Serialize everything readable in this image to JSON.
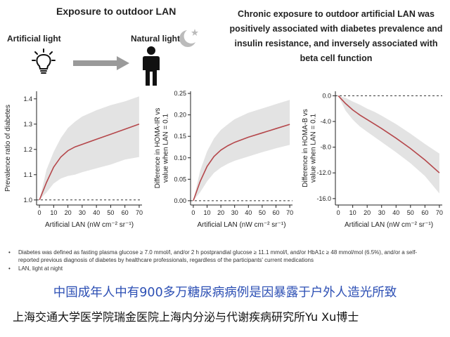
{
  "header": {
    "left_title": "Exposure to outdoor LAN",
    "artificial_label": "Artificial light",
    "natural_label": "Natural light",
    "right_title": "Chronic exposure to outdoor artificial LAN was positively associated with diabetes prevalence and insulin resistance, and inversely associated with beta cell function"
  },
  "colors": {
    "curve": "#b5474b",
    "band": "#e3e3e3",
    "arrow": "#9a9a9a",
    "blue_text": "#2c4fb4"
  },
  "icons": [
    "light-bulb-icon",
    "arrow-right-icon",
    "person-icon",
    "moon-icon",
    "star-icon"
  ],
  "notes": [
    "Diabetes was defined as fasting plasma glucose ≥ 7.0 mmol/l, and/or 2 h postprandial glucose ≥ 11.1 mmol/l, and/or HbA1c ≥ 48 mmol/mol (6.5%), and/or a self-reported previous diagnosis of diabetes by healthcare professionals, regardless of the participants' current medications",
    "LAN, light at night"
  ],
  "captions": {
    "blue": "中国成年人中有900多万糖尿病病例是因暴露于户外人造光所致",
    "black": "上海交通大学医学院瑞金医院上海内分泌与代谢疾病研究所Yu Xu博士"
  },
  "chart_data": [
    {
      "type": "line",
      "xlabel": "Artificial LAN (nW cm⁻² sr⁻¹)",
      "ylabel": "Prevalence ratio of diabetes",
      "xlim": [
        -2,
        72
      ],
      "ylim": [
        0.98,
        1.43
      ],
      "xticks": [
        0,
        10,
        20,
        30,
        40,
        50,
        60,
        70
      ],
      "yticks": [
        1.0,
        1.1,
        1.2,
        1.3,
        1.4
      ],
      "ytick_labels": [
        "1.0",
        "1.1",
        "1.2",
        "1.3",
        "1.4"
      ],
      "reference_y": 1.0,
      "x": [
        0,
        5,
        10,
        15,
        20,
        25,
        30,
        40,
        50,
        60,
        70
      ],
      "y": [
        1.0,
        1.07,
        1.13,
        1.17,
        1.195,
        1.21,
        1.22,
        1.24,
        1.26,
        1.28,
        1.3
      ],
      "lower": [
        1.0,
        1.03,
        1.065,
        1.085,
        1.095,
        1.1,
        1.11,
        1.125,
        1.14,
        1.16,
        1.17
      ],
      "upper": [
        1.0,
        1.12,
        1.19,
        1.245,
        1.285,
        1.31,
        1.33,
        1.355,
        1.375,
        1.39,
        1.41
      ]
    },
    {
      "type": "line",
      "xlabel": "Artificial LAN (nW cm⁻² sr⁻¹)",
      "ylabel": "Difference in HOMA-IR vs value when LAN = 0.1",
      "xlim": [
        -2,
        72
      ],
      "ylim": [
        -0.01,
        0.255
      ],
      "xticks": [
        0,
        10,
        20,
        30,
        40,
        50,
        60,
        70
      ],
      "yticks": [
        0.0,
        0.05,
        0.1,
        0.15,
        0.2,
        0.25
      ],
      "ytick_labels": [
        "0.00",
        "0.05",
        "0.10",
        "0.15",
        "0.20",
        "0.25"
      ],
      "reference_y": 0,
      "x": [
        0,
        5,
        10,
        15,
        20,
        25,
        30,
        40,
        50,
        60,
        70
      ],
      "y": [
        0,
        0.045,
        0.08,
        0.103,
        0.118,
        0.128,
        0.136,
        0.148,
        0.158,
        0.168,
        0.178
      ],
      "lower": [
        0,
        0.02,
        0.045,
        0.065,
        0.077,
        0.086,
        0.093,
        0.103,
        0.113,
        0.122,
        0.13
      ],
      "upper": [
        0,
        0.07,
        0.115,
        0.145,
        0.165,
        0.178,
        0.19,
        0.205,
        0.215,
        0.225,
        0.235
      ]
    },
    {
      "type": "line",
      "xlabel": "Artificial LAN (nW cm⁻² sr⁻¹)",
      "ylabel": "Difference in HOMA-B vs value when LAN = 0.1",
      "xlim": [
        -2,
        72
      ],
      "ylim": [
        -17,
        0.7
      ],
      "xticks": [
        0,
        10,
        20,
        30,
        40,
        50,
        60,
        70
      ],
      "yticks": [
        0,
        -4,
        -8,
        -12,
        -16
      ],
      "ytick_labels": [
        "0.0",
        "-4.0",
        "-8.0",
        "-12.0",
        "-16.0"
      ],
      "reference_y": 0,
      "x": [
        0,
        5,
        10,
        15,
        20,
        25,
        30,
        40,
        50,
        60,
        70
      ],
      "y": [
        0,
        -1.2,
        -2.2,
        -3.0,
        -3.7,
        -4.4,
        -5.1,
        -6.6,
        -8.2,
        -10.0,
        -12.0
      ],
      "lower": [
        0,
        -2.3,
        -3.7,
        -4.8,
        -5.6,
        -6.4,
        -7.2,
        -8.8,
        -10.5,
        -12.5,
        -15.2
      ],
      "upper": [
        0,
        -0.3,
        -0.9,
        -1.4,
        -2.0,
        -2.5,
        -3.1,
        -4.4,
        -5.9,
        -7.5,
        -9.0
      ]
    }
  ]
}
